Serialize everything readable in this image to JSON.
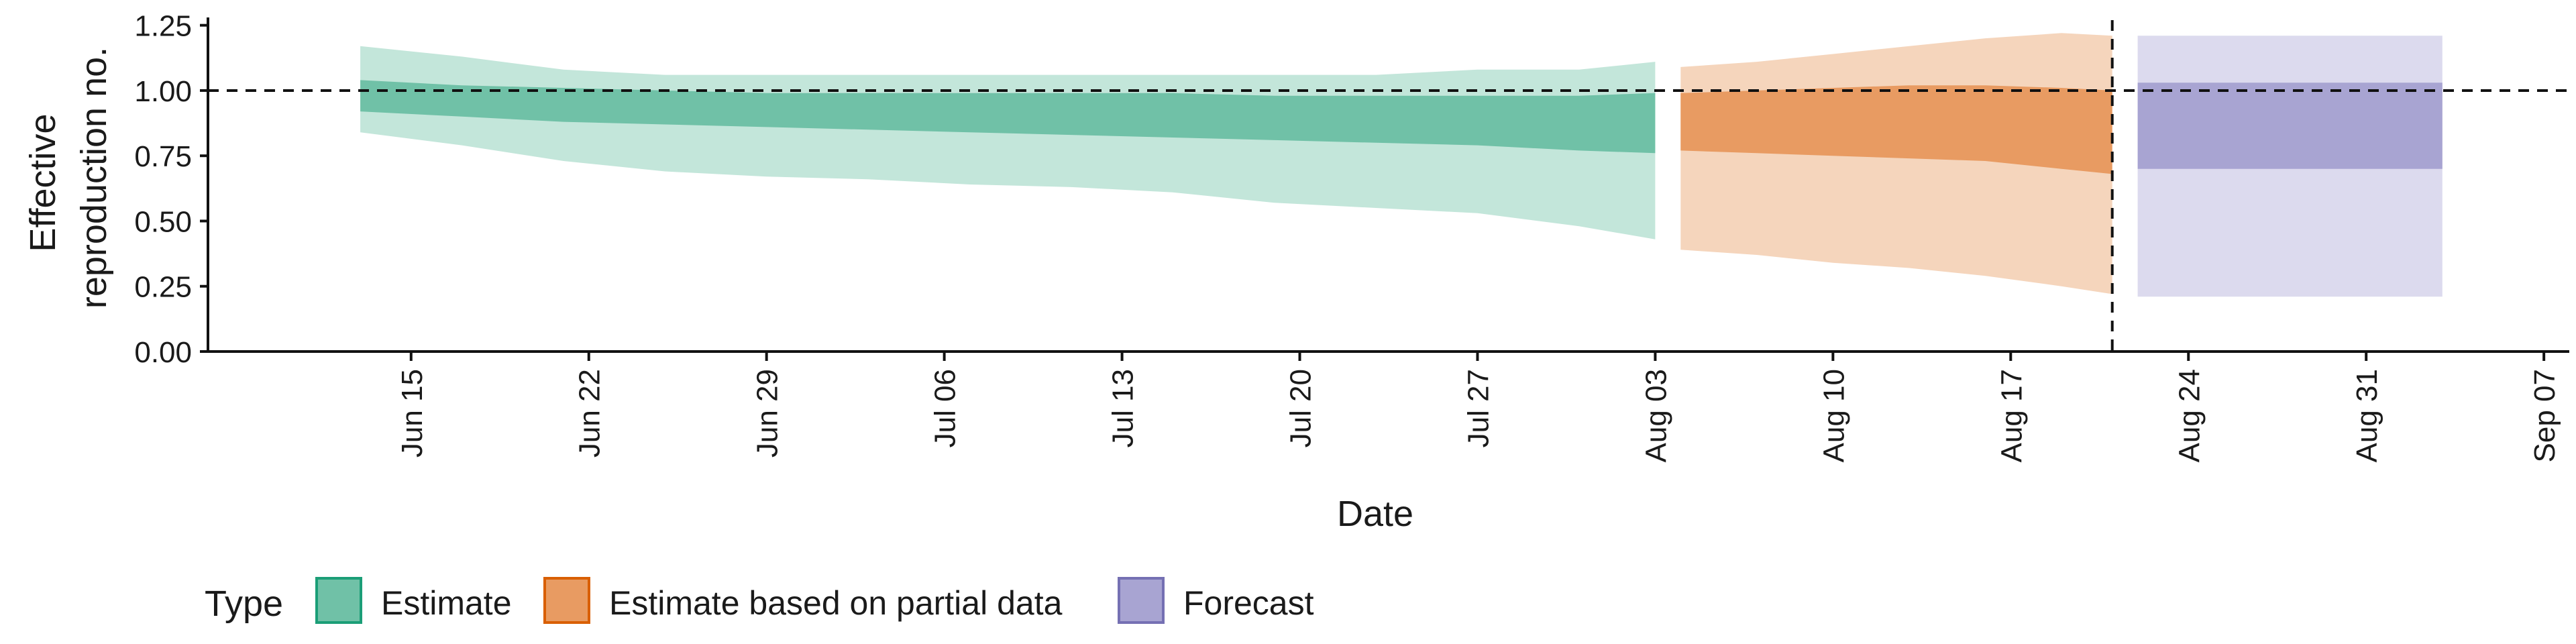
{
  "chart_data": {
    "type": "area",
    "xlabel": "Date",
    "ylabel_lines": [
      "Effective",
      "reproduction no."
    ],
    "ylim": [
      0,
      1.28
    ],
    "xlim": [
      "2020-06-07",
      "2020-09-08"
    ],
    "y_ticks": [
      0.0,
      0.25,
      0.5,
      0.75,
      1.0,
      1.25
    ],
    "y_tick_labels": [
      "0.00",
      "0.25",
      "0.50",
      "0.75",
      "1.00",
      "1.25"
    ],
    "x_ticks": [
      "2020-06-15",
      "2020-06-22",
      "2020-06-29",
      "2020-07-06",
      "2020-07-13",
      "2020-07-20",
      "2020-07-27",
      "2020-08-03",
      "2020-08-10",
      "2020-08-17",
      "2020-08-24",
      "2020-08-31",
      "2020-09-07"
    ],
    "x_tick_labels": [
      "Jun 15",
      "Jun 22",
      "Jun 29",
      "Jul 06",
      "Jul 13",
      "Jul 20",
      "Jul 27",
      "Aug 03",
      "Aug 10",
      "Aug 17",
      "Aug 24",
      "Aug 31",
      "Sep 07"
    ],
    "reference_line_y": 1.0,
    "vertical_line_x": "2020-08-21",
    "grid": false,
    "legend": {
      "title": "Type",
      "placement": "bottom",
      "entries": [
        {
          "label": "Estimate",
          "fill": "#70c1a7",
          "stroke": "#1b9e77"
        },
        {
          "label": "Estimate based on partial data",
          "fill": "#e89b62",
          "stroke": "#d95f02"
        },
        {
          "label": "Forecast",
          "fill": "#a8a4d2",
          "stroke": "#7570b3"
        }
      ]
    },
    "series": [
      {
        "name": "Estimate",
        "color_inner": "#70c1a7",
        "color_outer": "#c3e6da",
        "x": [
          "2020-06-13",
          "2020-06-17",
          "2020-06-21",
          "2020-06-25",
          "2020-06-29",
          "2020-07-03",
          "2020-07-07",
          "2020-07-11",
          "2020-07-15",
          "2020-07-19",
          "2020-07-23",
          "2020-07-27",
          "2020-07-31",
          "2020-08-03"
        ],
        "outer_upper": [
          1.17,
          1.13,
          1.08,
          1.06,
          1.06,
          1.06,
          1.06,
          1.06,
          1.06,
          1.06,
          1.06,
          1.08,
          1.08,
          1.11
        ],
        "outer_lower": [
          0.84,
          0.79,
          0.73,
          0.69,
          0.67,
          0.66,
          0.64,
          0.63,
          0.61,
          0.57,
          0.55,
          0.53,
          0.48,
          0.43
        ],
        "inner_upper": [
          1.04,
          1.02,
          1.01,
          1.0,
          0.99,
          0.99,
          0.99,
          0.99,
          0.99,
          0.98,
          0.98,
          0.98,
          0.98,
          0.99
        ],
        "inner_lower": [
          0.92,
          0.9,
          0.88,
          0.87,
          0.86,
          0.85,
          0.84,
          0.83,
          0.82,
          0.81,
          0.8,
          0.79,
          0.77,
          0.76
        ]
      },
      {
        "name": "Estimate based on partial data",
        "color_inner": "#e89b62",
        "color_outer": "#f5d5bc",
        "x": [
          "2020-08-04",
          "2020-08-07",
          "2020-08-10",
          "2020-08-13",
          "2020-08-16",
          "2020-08-19",
          "2020-08-21"
        ],
        "outer_upper": [
          1.09,
          1.11,
          1.14,
          1.17,
          1.2,
          1.22,
          1.21
        ],
        "outer_lower": [
          0.39,
          0.37,
          0.34,
          0.32,
          0.29,
          0.25,
          0.22
        ],
        "inner_upper": [
          0.99,
          1.0,
          1.01,
          1.02,
          1.02,
          1.01,
          1.0
        ],
        "inner_lower": [
          0.77,
          0.76,
          0.75,
          0.74,
          0.73,
          0.7,
          0.68
        ]
      },
      {
        "name": "Forecast",
        "color_inner": "#a8a4d2",
        "color_outer": "#dcdaee",
        "x": [
          "2020-08-22",
          "2020-09-03"
        ],
        "outer_upper": [
          1.21,
          1.21
        ],
        "outer_lower": [
          0.21,
          0.21
        ],
        "inner_upper": [
          1.03,
          1.03
        ],
        "inner_lower": [
          0.7,
          0.7
        ]
      }
    ]
  }
}
